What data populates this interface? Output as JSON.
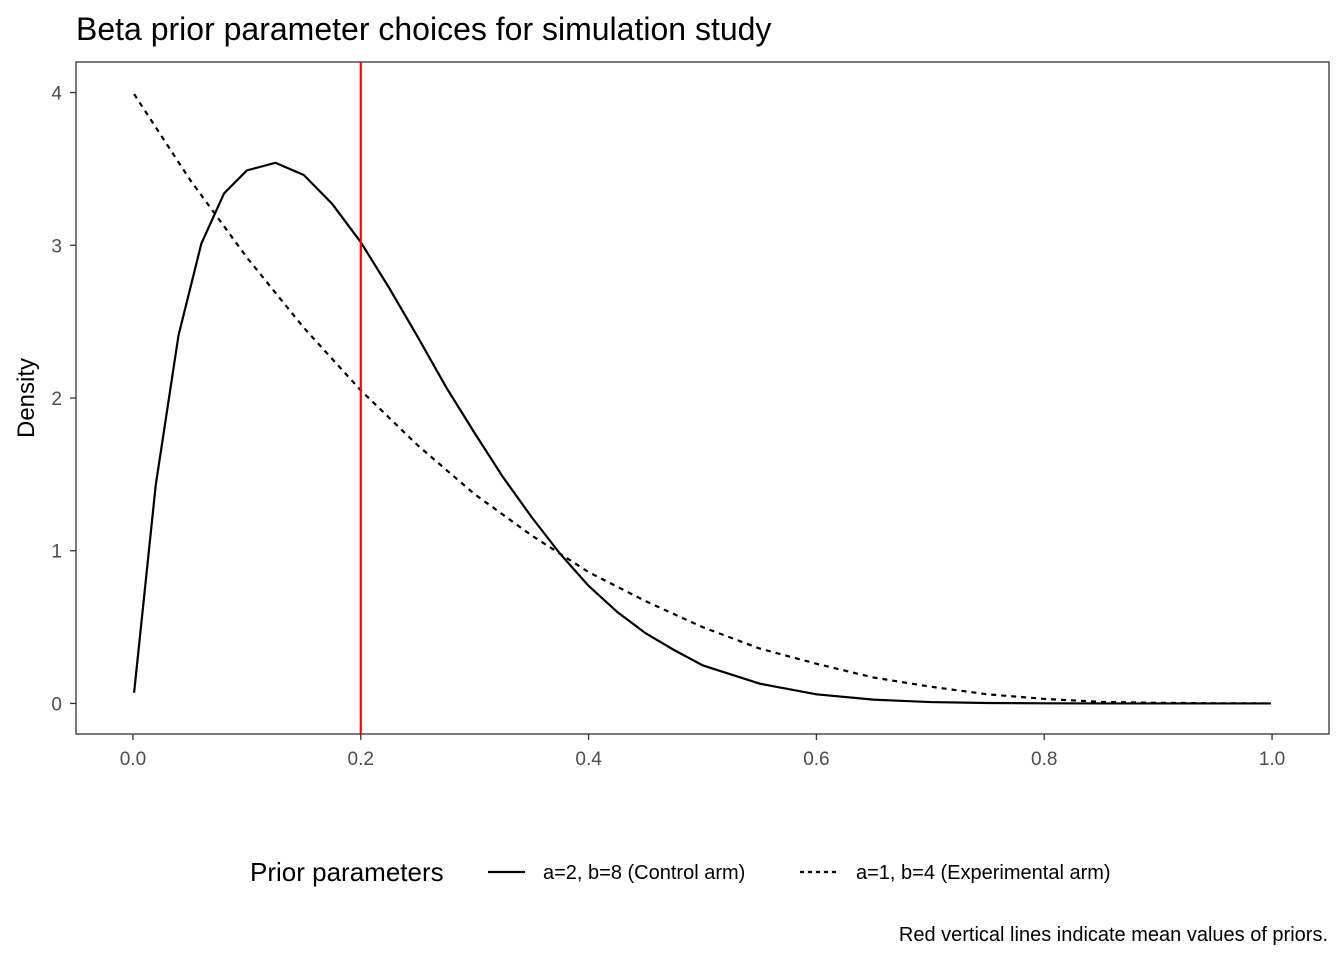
{
  "chart_data": {
    "type": "line",
    "title": "Beta prior parameter choices for simulation study",
    "xlabel": "",
    "ylabel": "Density",
    "xlim": [
      -0.05,
      1.05
    ],
    "ylim": [
      -0.2,
      4.2
    ],
    "x_ticks": [
      0.0,
      0.2,
      0.4,
      0.6,
      0.8,
      1.0
    ],
    "x_tick_labels": [
      "0.0",
      "0.2",
      "0.4",
      "0.6",
      "0.8",
      "1.0"
    ],
    "y_ticks": [
      0,
      1,
      2,
      3,
      4
    ],
    "y_tick_labels": [
      "0",
      "1",
      "2",
      "3",
      "4"
    ],
    "grid": false,
    "legend": {
      "title": "Prior parameters",
      "position": "bottom",
      "entries": [
        {
          "label": "a=2, b=8 (Control arm)",
          "linetype": "solid"
        },
        {
          "label": "a=1, b=4 (Experimental arm)",
          "linetype": "dashed"
        }
      ]
    },
    "series": [
      {
        "name": "a=2, b=8 (Control arm)",
        "linetype": "solid",
        "color": "#000000",
        "x": [
          0.001,
          0.02,
          0.04,
          0.06,
          0.08,
          0.1,
          0.125,
          0.15,
          0.175,
          0.2,
          0.225,
          0.25,
          0.275,
          0.3,
          0.325,
          0.35,
          0.375,
          0.4,
          0.425,
          0.45,
          0.475,
          0.5,
          0.55,
          0.6,
          0.65,
          0.7,
          0.75,
          0.8,
          0.85,
          0.9,
          0.95,
          0.999
        ],
        "y": [
          0.07,
          1.43,
          2.41,
          3.01,
          3.34,
          3.49,
          3.54,
          3.46,
          3.27,
          3.02,
          2.72,
          2.4,
          2.07,
          1.77,
          1.48,
          1.22,
          0.98,
          0.77,
          0.6,
          0.46,
          0.35,
          0.25,
          0.13,
          0.06,
          0.025,
          0.009,
          0.003,
          0.001,
          0.0,
          0.0,
          0.0,
          0.0
        ]
      },
      {
        "name": "a=1, b=4 (Experimental arm)",
        "linetype": "dashed",
        "color": "#000000",
        "x": [
          0.001,
          0.05,
          0.1,
          0.15,
          0.2,
          0.25,
          0.3,
          0.35,
          0.4,
          0.45,
          0.5,
          0.55,
          0.6,
          0.65,
          0.7,
          0.75,
          0.8,
          0.85,
          0.9,
          0.95,
          0.999
        ],
        "y": [
          3.99,
          3.43,
          2.92,
          2.46,
          2.05,
          1.69,
          1.37,
          1.1,
          0.86,
          0.67,
          0.5,
          0.36,
          0.26,
          0.17,
          0.11,
          0.06,
          0.03,
          0.01,
          0.004,
          0.001,
          0.0
        ]
      }
    ],
    "vlines": [
      {
        "x": 0.2,
        "color": "#ff0000"
      }
    ],
    "caption": "Red vertical lines indicate mean values of priors."
  }
}
